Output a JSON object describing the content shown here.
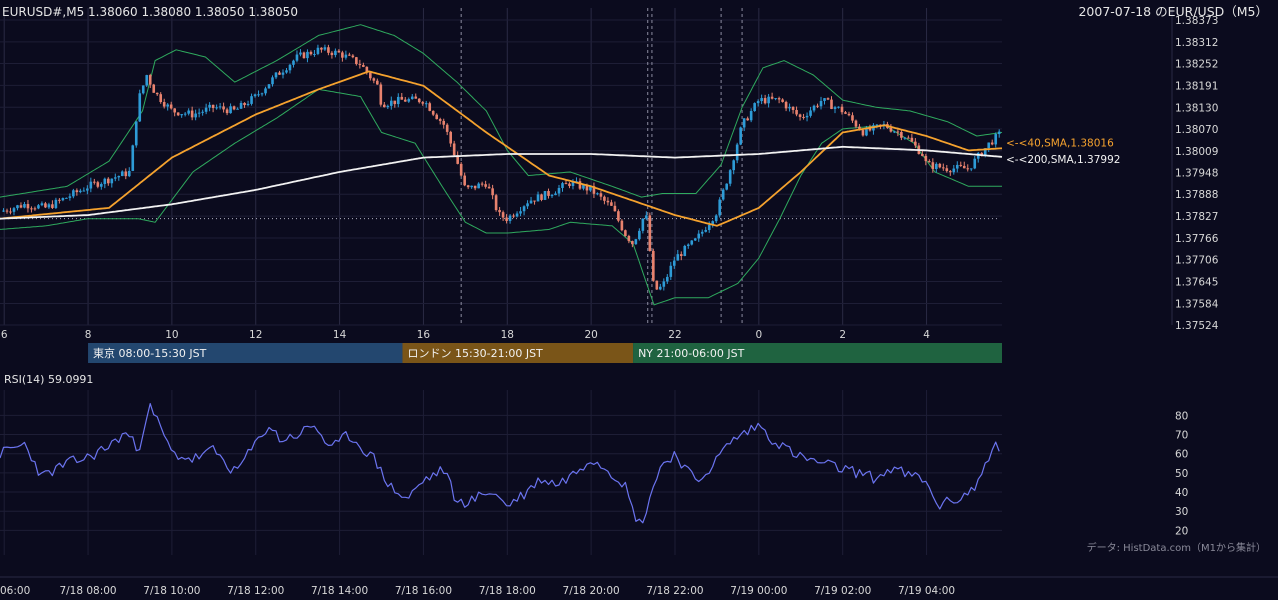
{
  "header": {
    "ohlc_label": "EURUSD#,M5 1.38060 1.38080 1.38050 1.38050",
    "title": "2007-07-18 のEUR/USD（M5）"
  },
  "colors": {
    "background": "#0b0b1e",
    "bull": "#2e9bd6",
    "bear": "#e8826e",
    "sma40": "#f5a22e",
    "sma200": "#f2f2f2",
    "bollinger": "#2faa5e",
    "rsi": "#6b74f0",
    "session_tokyo": "#23476f",
    "session_london": "#7a5518",
    "session_ny": "#1f6340"
  },
  "sessions": [
    {
      "label": "東京 08:00-15:30 JST",
      "start": 8.0,
      "end": 15.5,
      "color": "#23476f"
    },
    {
      "label": "ロンドン 15:30-21:00 JST",
      "start": 15.5,
      "end": 21.0,
      "color": "#7a5518"
    },
    {
      "label": "NY 21:00-06:00 JST",
      "start": 21.0,
      "end": 30.0,
      "color": "#1f6340"
    }
  ],
  "footer": {
    "source": "データ: HistData.com（M1から集計）"
  },
  "chart_data": [
    {
      "type": "candlestick",
      "title": "2007-07-18 のEUR/USD（M5）",
      "x_start_hour": 5.9,
      "x_end_hour": 29.8,
      "x_tick_labels": [
        "6",
        "8",
        "10",
        "12",
        "14",
        "16",
        "18",
        "20",
        "22",
        "0",
        "2",
        "4"
      ],
      "x_tick_hours": [
        6,
        8,
        10,
        12,
        14,
        16,
        18,
        20,
        22,
        24,
        26,
        28
      ],
      "ylim": [
        1.37524,
        1.38373
      ],
      "y_tick_labels": [
        "1.38373",
        "1.38312",
        "1.38252",
        "1.38191",
        "1.38130",
        "1.38070",
        "1.38009",
        "1.37948",
        "1.37888",
        "1.37827",
        "1.37766",
        "1.37706",
        "1.37645",
        "1.37584",
        "1.37524"
      ],
      "vertical_dashed_hours": [
        16.9,
        21.35,
        21.45,
        23.1,
        23.6
      ],
      "reference_level": 1.3782,
      "close_keypoints": [
        [
          5.9,
          1.3784
        ],
        [
          6.5,
          1.3786
        ],
        [
          7.0,
          1.3785
        ],
        [
          7.5,
          1.3788
        ],
        [
          8.0,
          1.3791
        ],
        [
          8.5,
          1.3793
        ],
        [
          9.0,
          1.3795
        ],
        [
          9.2,
          1.3815
        ],
        [
          9.4,
          1.3822
        ],
        [
          9.6,
          1.3817
        ],
        [
          10.0,
          1.3812
        ],
        [
          10.5,
          1.3811
        ],
        [
          11.0,
          1.3813
        ],
        [
          11.5,
          1.3812
        ],
        [
          12.0,
          1.3816
        ],
        [
          12.5,
          1.3822
        ],
        [
          13.0,
          1.3827
        ],
        [
          13.5,
          1.3829
        ],
        [
          14.0,
          1.3828
        ],
        [
          14.5,
          1.3825
        ],
        [
          14.9,
          1.3819
        ],
        [
          15.0,
          1.3814
        ],
        [
          15.5,
          1.3815
        ],
        [
          16.0,
          1.3815
        ],
        [
          16.5,
          1.3808
        ],
        [
          16.8,
          1.3798
        ],
        [
          17.0,
          1.379
        ],
        [
          17.5,
          1.3792
        ],
        [
          17.8,
          1.3783
        ],
        [
          18.0,
          1.3782
        ],
        [
          18.5,
          1.3787
        ],
        [
          19.0,
          1.3789
        ],
        [
          19.5,
          1.3792
        ],
        [
          20.0,
          1.379
        ],
        [
          20.5,
          1.3785
        ],
        [
          20.8,
          1.3778
        ],
        [
          21.0,
          1.3775
        ],
        [
          21.3,
          1.3784
        ],
        [
          21.5,
          1.3762
        ],
        [
          21.7,
          1.3763
        ],
        [
          22.0,
          1.3771
        ],
        [
          22.5,
          1.3776
        ],
        [
          23.0,
          1.3784
        ],
        [
          23.3,
          1.3795
        ],
        [
          23.6,
          1.3808
        ],
        [
          24.0,
          1.3815
        ],
        [
          24.5,
          1.3815
        ],
        [
          25.0,
          1.381
        ],
        [
          25.5,
          1.3815
        ],
        [
          26.0,
          1.3812
        ],
        [
          26.5,
          1.3806
        ],
        [
          27.0,
          1.3808
        ],
        [
          27.5,
          1.3805
        ],
        [
          27.9,
          1.38
        ],
        [
          28.0,
          1.3797
        ],
        [
          28.5,
          1.3796
        ],
        [
          29.0,
          1.3796
        ],
        [
          29.5,
          1.3803
        ],
        [
          29.8,
          1.3806
        ]
      ],
      "series": [
        {
          "name": "<-<40,SMA,1.38016",
          "type": "line",
          "color": "#f5a22e",
          "end_value": 1.38016,
          "keypoints": [
            [
              5.9,
              1.3782
            ],
            [
              8.5,
              1.3785
            ],
            [
              10.0,
              1.3799
            ],
            [
              12.0,
              1.3811
            ],
            [
              13.5,
              1.3818
            ],
            [
              14.7,
              1.3823
            ],
            [
              16.0,
              1.3819
            ],
            [
              17.5,
              1.3806
            ],
            [
              19.0,
              1.3794
            ],
            [
              20.0,
              1.3791
            ],
            [
              21.0,
              1.3787
            ],
            [
              22.0,
              1.3783
            ],
            [
              23.0,
              1.378
            ],
            [
              24.0,
              1.3785
            ],
            [
              25.0,
              1.3795
            ],
            [
              26.0,
              1.3806
            ],
            [
              27.0,
              1.3808
            ],
            [
              28.0,
              1.3805
            ],
            [
              29.0,
              1.3801
            ],
            [
              29.8,
              1.38016
            ]
          ]
        },
        {
          "name": "<-<200,SMA,1.37992",
          "type": "line",
          "color": "#f2f2f2",
          "end_value": 1.37992,
          "keypoints": [
            [
              5.9,
              1.3782
            ],
            [
              8.0,
              1.3783
            ],
            [
              10.0,
              1.3786
            ],
            [
              12.0,
              1.379
            ],
            [
              14.0,
              1.3795
            ],
            [
              16.0,
              1.3799
            ],
            [
              18.0,
              1.38
            ],
            [
              20.0,
              1.38
            ],
            [
              22.0,
              1.3799
            ],
            [
              24.0,
              1.38
            ],
            [
              26.0,
              1.3802
            ],
            [
              28.0,
              1.3801
            ],
            [
              29.8,
              1.37992
            ]
          ]
        },
        {
          "name": "",
          "type": "line",
          "color": "#2faa5e",
          "role": "bollinger-upper",
          "keypoints": [
            [
              5.9,
              1.3788
            ],
            [
              7.5,
              1.3791
            ],
            [
              8.5,
              1.3798
            ],
            [
              9.3,
              1.3812
            ],
            [
              9.6,
              1.3826
            ],
            [
              10.1,
              1.3829
            ],
            [
              10.8,
              1.3827
            ],
            [
              11.5,
              1.382
            ],
            [
              12.5,
              1.3826
            ],
            [
              13.5,
              1.3833
            ],
            [
              14.5,
              1.3836
            ],
            [
              15.3,
              1.3833
            ],
            [
              16.0,
              1.3828
            ],
            [
              16.8,
              1.382
            ],
            [
              17.5,
              1.3812
            ],
            [
              18.0,
              1.3801
            ],
            [
              18.5,
              1.3794
            ],
            [
              19.5,
              1.3795
            ],
            [
              20.5,
              1.3791
            ],
            [
              21.2,
              1.3788
            ],
            [
              21.7,
              1.3789
            ],
            [
              22.5,
              1.3789
            ],
            [
              23.1,
              1.3797
            ],
            [
              23.6,
              1.3813
            ],
            [
              24.1,
              1.3824
            ],
            [
              24.6,
              1.3826
            ],
            [
              25.3,
              1.3822
            ],
            [
              26.0,
              1.3815
            ],
            [
              26.8,
              1.3813
            ],
            [
              27.6,
              1.3812
            ],
            [
              28.5,
              1.3809
            ],
            [
              29.2,
              1.3805
            ],
            [
              29.8,
              1.3806
            ]
          ]
        },
        {
          "name": "",
          "type": "line",
          "color": "#2faa5e",
          "role": "bollinger-lower",
          "keypoints": [
            [
              5.9,
              1.3779
            ],
            [
              7.0,
              1.378
            ],
            [
              8.0,
              1.3782
            ],
            [
              9.2,
              1.3782
            ],
            [
              9.6,
              1.3781
            ],
            [
              10.5,
              1.3795
            ],
            [
              11.5,
              1.3803
            ],
            [
              12.5,
              1.381
            ],
            [
              13.5,
              1.3818
            ],
            [
              14.5,
              1.3816
            ],
            [
              15.0,
              1.3806
            ],
            [
              15.8,
              1.3803
            ],
            [
              16.5,
              1.379
            ],
            [
              17.0,
              1.3781
            ],
            [
              17.5,
              1.3778
            ],
            [
              18.0,
              1.3778
            ],
            [
              19.0,
              1.3779
            ],
            [
              19.5,
              1.3781
            ],
            [
              20.5,
              1.378
            ],
            [
              21.0,
              1.3775
            ],
            [
              21.5,
              1.3758
            ],
            [
              22.0,
              1.376
            ],
            [
              22.8,
              1.376
            ],
            [
              23.5,
              1.3764
            ],
            [
              24.0,
              1.3771
            ],
            [
              24.5,
              1.3782
            ],
            [
              25.0,
              1.3794
            ],
            [
              25.5,
              1.3803
            ],
            [
              26.0,
              1.3807
            ],
            [
              27.0,
              1.3808
            ],
            [
              27.7,
              1.3803
            ],
            [
              28.2,
              1.3795
            ],
            [
              29.0,
              1.3791
            ],
            [
              29.8,
              1.3791
            ]
          ]
        }
      ]
    },
    {
      "type": "line",
      "title": "RSI(14) 59.0991",
      "ylim": [
        15,
        88
      ],
      "y_tick_labels": [
        "80",
        "70",
        "60",
        "50",
        "40",
        "30",
        "20"
      ],
      "y_ticks": [
        80,
        70,
        60,
        50,
        40,
        30,
        20
      ],
      "x_tick_labels": [
        "06:00",
        "7/18 08:00",
        "7/18 10:00",
        "7/18 12:00",
        "7/18 14:00",
        "7/18 16:00",
        "7/18 18:00",
        "7/18 20:00",
        "7/18 22:00",
        "7/19 00:00",
        "7/19 02:00",
        "7/19 04:00"
      ],
      "x_tick_hours": [
        6,
        8,
        10,
        12,
        14,
        16,
        18,
        20,
        22,
        24,
        26,
        28
      ],
      "series": [
        {
          "name": "RSI(14)",
          "color": "#6b74f0",
          "last_value": 59.0991,
          "keypoints": [
            [
              5.9,
              60
            ],
            [
              6.5,
              65
            ],
            [
              6.9,
              48
            ],
            [
              7.5,
              55
            ],
            [
              8.0,
              58
            ],
            [
              8.5,
              64
            ],
            [
              8.9,
              71
            ],
            [
              9.2,
              62
            ],
            [
              9.45,
              85
            ],
            [
              9.7,
              75
            ],
            [
              10.0,
              60
            ],
            [
              10.5,
              57
            ],
            [
              11.0,
              62
            ],
            [
              11.5,
              50
            ],
            [
              12.0,
              65
            ],
            [
              12.3,
              75
            ],
            [
              12.6,
              67
            ],
            [
              13.0,
              70
            ],
            [
              13.4,
              75
            ],
            [
              13.8,
              62
            ],
            [
              14.2,
              70
            ],
            [
              14.8,
              58
            ],
            [
              15.2,
              43
            ],
            [
              15.6,
              36
            ],
            [
              16.0,
              46
            ],
            [
              16.5,
              52
            ],
            [
              16.8,
              34
            ],
            [
              17.2,
              36
            ],
            [
              17.6,
              41
            ],
            [
              18.0,
              33
            ],
            [
              18.4,
              39
            ],
            [
              18.8,
              47
            ],
            [
              19.2,
              44
            ],
            [
              19.6,
              50
            ],
            [
              20.0,
              58
            ],
            [
              20.4,
              52
            ],
            [
              20.8,
              44
            ],
            [
              21.0,
              30
            ],
            [
              21.2,
              22
            ],
            [
              21.4,
              38
            ],
            [
              21.7,
              55
            ],
            [
              22.0,
              60
            ],
            [
              22.5,
              45
            ],
            [
              22.9,
              54
            ],
            [
              23.3,
              66
            ],
            [
              23.6,
              70
            ],
            [
              24.0,
              75
            ],
            [
              24.3,
              68
            ],
            [
              24.7,
              62
            ],
            [
              25.0,
              58
            ],
            [
              25.5,
              55
            ],
            [
              26.0,
              52
            ],
            [
              26.4,
              50
            ],
            [
              26.8,
              47
            ],
            [
              27.2,
              53
            ],
            [
              27.5,
              49
            ],
            [
              27.9,
              47
            ],
            [
              28.3,
              33
            ],
            [
              28.8,
              37
            ],
            [
              29.2,
              43
            ],
            [
              29.45,
              58
            ],
            [
              29.65,
              64
            ],
            [
              29.8,
              59
            ]
          ]
        }
      ]
    }
  ]
}
